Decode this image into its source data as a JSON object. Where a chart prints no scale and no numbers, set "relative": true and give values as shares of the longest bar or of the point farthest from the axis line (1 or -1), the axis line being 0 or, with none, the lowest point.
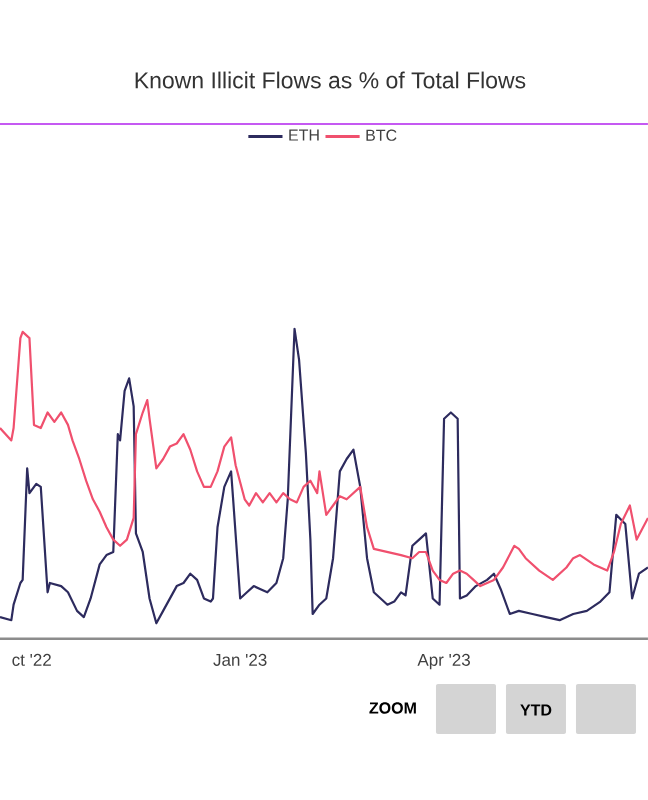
{
  "chart_data": {
    "type": "line",
    "title": "Known Illicit Flows as % of Total Flows",
    "relative": true,
    "legend": "top",
    "xlim": [
      "2022-09-17",
      "2023-06-30"
    ],
    "xticks": [
      {
        "value": "2022-10-01",
        "label": "ct '22"
      },
      {
        "value": "2023-01-01",
        "label": "Jan '23"
      },
      {
        "value": "2023-04-01",
        "label": "Apr '23"
      }
    ],
    "annotations": [
      "ZOOM",
      "YTD"
    ],
    "series": [
      {
        "name": "ETH",
        "color": "#2d2b5e",
        "x": [
          "2022-09-17",
          "2022-09-22",
          "2022-09-23",
          "2022-09-26",
          "2022-09-27",
          "2022-09-29",
          "2022-09-30",
          "2022-10-03",
          "2022-10-05",
          "2022-10-08",
          "2022-10-09",
          "2022-10-14",
          "2022-10-17",
          "2022-10-21",
          "2022-10-24",
          "2022-10-27",
          "2022-10-31",
          "2022-11-03",
          "2022-11-06",
          "2022-11-08",
          "2022-11-09",
          "2022-11-11",
          "2022-11-13",
          "2022-11-15",
          "2022-11-16",
          "2022-11-19",
          "2022-11-22",
          "2022-11-25",
          "2022-11-28",
          "2022-12-01",
          "2022-12-04",
          "2022-12-07",
          "2022-12-10",
          "2022-12-13",
          "2022-12-16",
          "2022-12-19",
          "2022-12-20",
          "2022-12-22",
          "2022-12-25",
          "2022-12-28",
          "2022-12-29",
          "2023-01-01",
          "2023-01-04",
          "2023-01-07",
          "2023-01-10",
          "2023-01-13",
          "2023-01-17",
          "2023-01-20",
          "2023-01-22",
          "2023-01-25",
          "2023-01-27",
          "2023-01-30",
          "2023-02-01",
          "2023-02-02",
          "2023-02-05",
          "2023-02-08",
          "2023-02-11",
          "2023-02-14",
          "2023-02-17",
          "2023-02-20",
          "2023-02-23",
          "2023-02-26",
          "2023-03-01",
          "2023-03-04",
          "2023-03-07",
          "2023-03-10",
          "2023-03-13",
          "2023-03-15",
          "2023-03-18",
          "2023-03-21",
          "2023-03-24",
          "2023-03-27",
          "2023-03-30",
          "2023-04-01",
          "2023-04-04",
          "2023-04-07",
          "2023-04-08",
          "2023-04-11",
          "2023-04-15",
          "2023-04-20",
          "2023-04-23",
          "2023-04-26",
          "2023-04-30",
          "2023-05-04",
          "2023-05-10",
          "2023-05-16",
          "2023-05-22",
          "2023-05-28",
          "2023-06-03",
          "2023-06-09",
          "2023-06-13",
          "2023-06-16",
          "2023-06-20",
          "2023-06-23",
          "2023-06-26",
          "2023-06-30"
        ],
        "values": [
          0.07,
          0.06,
          0.11,
          0.18,
          0.19,
          0.55,
          0.47,
          0.5,
          0.49,
          0.15,
          0.18,
          0.17,
          0.15,
          0.09,
          0.07,
          0.13,
          0.24,
          0.27,
          0.28,
          0.66,
          0.64,
          0.8,
          0.84,
          0.75,
          0.34,
          0.28,
          0.13,
          0.05,
          0.09,
          0.13,
          0.17,
          0.18,
          0.21,
          0.19,
          0.13,
          0.12,
          0.13,
          0.36,
          0.49,
          0.54,
          0.44,
          0.13,
          0.15,
          0.17,
          0.16,
          0.15,
          0.18,
          0.26,
          0.45,
          1,
          0.9,
          0.6,
          0.32,
          0.08,
          0.11,
          0.13,
          0.26,
          0.54,
          0.58,
          0.61,
          0.49,
          0.26,
          0.15,
          0.13,
          0.11,
          0.12,
          0.15,
          0.14,
          0.3,
          0.32,
          0.34,
          0.13,
          0.11,
          0.71,
          0.73,
          0.71,
          0.13,
          0.14,
          0.17,
          0.19,
          0.21,
          0.16,
          0.08,
          0.09,
          0.08,
          0.07,
          0.06,
          0.08,
          0.09,
          0.12,
          0.15,
          0.4,
          0.37,
          0.13,
          0.21,
          0.23
        ]
      },
      {
        "name": "BTC",
        "color": "#f0506e",
        "x": [
          "2022-09-17",
          "2022-09-22",
          "2022-09-23",
          "2022-09-26",
          "2022-09-27",
          "2022-09-30",
          "2022-10-02",
          "2022-10-05",
          "2022-10-08",
          "2022-10-11",
          "2022-10-14",
          "2022-10-17",
          "2022-10-19",
          "2022-10-22",
          "2022-10-25",
          "2022-10-28",
          "2022-10-31",
          "2022-11-03",
          "2022-11-06",
          "2022-11-09",
          "2022-11-12",
          "2022-11-15",
          "2022-11-16",
          "2022-11-19",
          "2022-11-21",
          "2022-11-22",
          "2022-11-25",
          "2022-11-28",
          "2022-12-01",
          "2022-12-04",
          "2022-12-07",
          "2022-12-10",
          "2022-12-13",
          "2022-12-16",
          "2022-12-19",
          "2022-12-22",
          "2022-12-25",
          "2022-12-28",
          "2022-12-30",
          "2023-01-03",
          "2023-01-05",
          "2023-01-08",
          "2023-01-11",
          "2023-01-14",
          "2023-01-17",
          "2023-01-20",
          "2023-01-23",
          "2023-01-26",
          "2023-01-29",
          "2023-02-01",
          "2023-02-04",
          "2023-02-05",
          "2023-02-08",
          "2023-02-11",
          "2023-02-14",
          "2023-02-17",
          "2023-02-20",
          "2023-02-23",
          "2023-02-26",
          "2023-03-01",
          "2023-03-07",
          "2023-03-13",
          "2023-03-18",
          "2023-03-21",
          "2023-03-24",
          "2023-03-27",
          "2023-03-30",
          "2023-04-02",
          "2023-04-05",
          "2023-04-08",
          "2023-04-11",
          "2023-04-14",
          "2023-04-17",
          "2023-04-20",
          "2023-04-23",
          "2023-04-27",
          "2023-05-02",
          "2023-05-04",
          "2023-05-07",
          "2023-05-13",
          "2023-05-19",
          "2023-05-25",
          "2023-05-28",
          "2023-05-31",
          "2023-06-06",
          "2023-06-12",
          "2023-06-15",
          "2023-06-18",
          "2023-06-22",
          "2023-06-25",
          "2023-06-30"
        ],
        "values": [
          0.68,
          0.64,
          0.68,
          0.97,
          0.99,
          0.97,
          0.69,
          0.68,
          0.73,
          0.7,
          0.73,
          0.69,
          0.64,
          0.58,
          0.51,
          0.45,
          0.41,
          0.36,
          0.32,
          0.3,
          0.32,
          0.39,
          0.66,
          0.73,
          0.77,
          0.71,
          0.55,
          0.58,
          0.62,
          0.63,
          0.66,
          0.61,
          0.54,
          0.49,
          0.49,
          0.54,
          0.62,
          0.65,
          0.56,
          0.45,
          0.43,
          0.47,
          0.44,
          0.47,
          0.44,
          0.47,
          0.45,
          0.44,
          0.49,
          0.51,
          0.47,
          0.54,
          0.4,
          0.43,
          0.46,
          0.45,
          0.47,
          0.49,
          0.36,
          0.29,
          0.28,
          0.27,
          0.26,
          0.28,
          0.28,
          0.22,
          0.19,
          0.18,
          0.21,
          0.22,
          0.21,
          0.19,
          0.17,
          0.18,
          0.19,
          0.23,
          0.3,
          0.29,
          0.26,
          0.22,
          0.19,
          0.23,
          0.26,
          0.27,
          0.24,
          0.22,
          0.28,
          0.37,
          0.43,
          0.32,
          0.39
        ]
      }
    ]
  }
}
